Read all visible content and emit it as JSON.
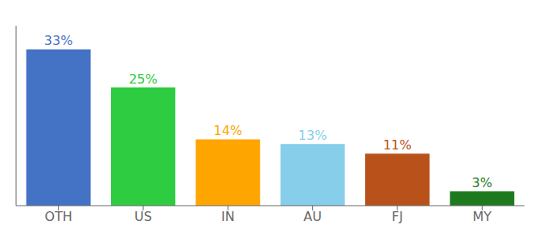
{
  "chart_data": {
    "type": "bar",
    "categories": [
      "OTH",
      "US",
      "IN",
      "AU",
      "FJ",
      "MY"
    ],
    "values": [
      33,
      25,
      14,
      13,
      11,
      3
    ],
    "value_labels": [
      "33%",
      "25%",
      "14%",
      "13%",
      "11%",
      "3%"
    ],
    "colors": [
      "#4472C4",
      "#2ECC40",
      "#FFA500",
      "#87CEEB",
      "#B8521A",
      "#1E7A1E"
    ],
    "ylim": [
      0,
      38
    ],
    "data_labels": true,
    "tick_labels": "x",
    "grid": false
  }
}
